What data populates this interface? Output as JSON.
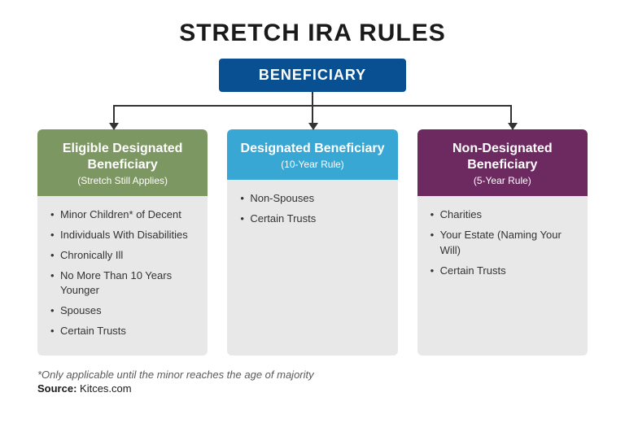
{
  "type": "tree",
  "title": "STRETCH IRA RULES",
  "root": {
    "label": "BENEFICIARY",
    "bg": "#095092",
    "fg": "#ffffff"
  },
  "connector": {
    "color": "#333333",
    "stroke_width": 2,
    "arrow_size": 9
  },
  "background_color": "#ffffff",
  "body_bg": "#e8e8e8",
  "title_fontsize": 30,
  "head_title_fontsize": 16,
  "head_sub_fontsize": 12,
  "body_fontsize": 13,
  "columns": [
    {
      "title": "Eligible Designated Beneficiary",
      "subtitle": "(Stretch Still Applies)",
      "head_bg": "#7d9762",
      "items": [
        "Minor Children* of Decent",
        "Individuals With Disabilities",
        "Chronically Ill",
        "No More Than 10 Years Younger",
        "Spouses",
        "Certain Trusts"
      ]
    },
    {
      "title": "Designated Beneficiary",
      "subtitle": "(10-Year Rule)",
      "head_bg": "#39a7d4",
      "items": [
        "Non-Spouses",
        "Certain Trusts"
      ]
    },
    {
      "title": "Non-Designated Beneficiary",
      "subtitle": "(5-Year Rule)",
      "head_bg": "#6d2a60",
      "items": [
        "Charities",
        "Your Estate (Naming Your Will)",
        "Certain Trusts"
      ]
    }
  ],
  "footnote": "*Only applicable until the minor reaches the age of majority",
  "source_label": "Source:",
  "source_value": "Kitces.com"
}
